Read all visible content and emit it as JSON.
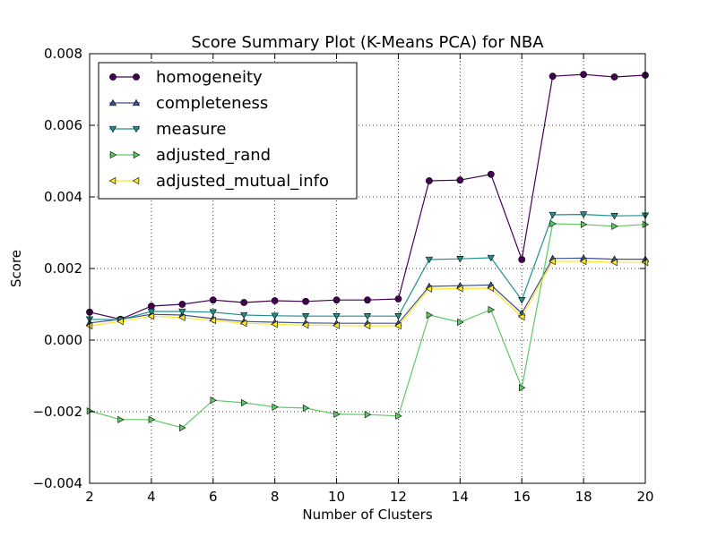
{
  "chart_data": {
    "type": "line",
    "title": "Score Summary Plot (K-Means PCA) for NBA",
    "xlabel": "Number of Clusters",
    "ylabel": "Score",
    "xlim": [
      2,
      20
    ],
    "ylim": [
      -0.004,
      0.008
    ],
    "grid": true,
    "legend_position": "top-left",
    "x_ticks": [
      2,
      4,
      6,
      8,
      10,
      12,
      14,
      16,
      18,
      20
    ],
    "x_tick_labels": [
      "2",
      "4",
      "6",
      "8",
      "10",
      "12",
      "14",
      "16",
      "18",
      "20"
    ],
    "y_ticks": [
      -0.004,
      -0.002,
      0.0,
      0.002,
      0.004,
      0.006,
      0.008
    ],
    "y_tick_labels": [
      "−0.004",
      "−0.002",
      "0.000",
      "0.002",
      "0.004",
      "0.006",
      "0.008"
    ],
    "x": [
      2,
      3,
      4,
      5,
      6,
      7,
      8,
      9,
      10,
      11,
      12,
      13,
      14,
      15,
      16,
      17,
      18,
      19,
      20
    ],
    "series": [
      {
        "name": "homogeneity",
        "color": "#440154",
        "marker": "circle",
        "values": [
          0.00078,
          0.00058,
          0.00095,
          0.001,
          0.00112,
          0.00105,
          0.0011,
          0.00108,
          0.00112,
          0.00112,
          0.00115,
          0.00445,
          0.00447,
          0.00463,
          0.00225,
          0.00737,
          0.00742,
          0.00735,
          0.0074
        ]
      },
      {
        "name": "completeness",
        "color": "#3b528b",
        "marker": "triangle-up",
        "values": [
          0.00048,
          0.00058,
          0.00072,
          0.0007,
          0.0006,
          0.00052,
          0.0005,
          0.00048,
          0.00047,
          0.00047,
          0.00047,
          0.0015,
          0.00152,
          0.00154,
          0.00075,
          0.00228,
          0.00229,
          0.00226,
          0.00226
        ]
      },
      {
        "name": "measure",
        "color": "#21908d",
        "marker": "triangle-down",
        "values": [
          0.00058,
          0.00057,
          0.0008,
          0.0008,
          0.00078,
          0.0007,
          0.00068,
          0.00067,
          0.00067,
          0.00067,
          0.00067,
          0.00225,
          0.00227,
          0.0023,
          0.00112,
          0.0035,
          0.00351,
          0.00347,
          0.00348
        ]
      },
      {
        "name": "adjusted_rand",
        "color": "#5dc963",
        "marker": "triangle-right",
        "values": [
          -0.00198,
          -0.00222,
          -0.00222,
          -0.00245,
          -0.00168,
          -0.00175,
          -0.00187,
          -0.0019,
          -0.00207,
          -0.00208,
          -0.00212,
          0.0007,
          0.0005,
          0.00085,
          -0.00133,
          0.00325,
          0.00323,
          0.00318,
          0.00323
        ]
      },
      {
        "name": "adjusted_mutual_info",
        "color": "#fde725",
        "marker": "triangle-left",
        "values": [
          0.0004,
          0.00052,
          0.00067,
          0.00063,
          0.00055,
          0.00047,
          0.00044,
          0.00042,
          0.00041,
          0.0004,
          0.0004,
          0.00143,
          0.00144,
          0.00145,
          0.00065,
          0.0022,
          0.0022,
          0.00217,
          0.00217
        ]
      }
    ]
  }
}
